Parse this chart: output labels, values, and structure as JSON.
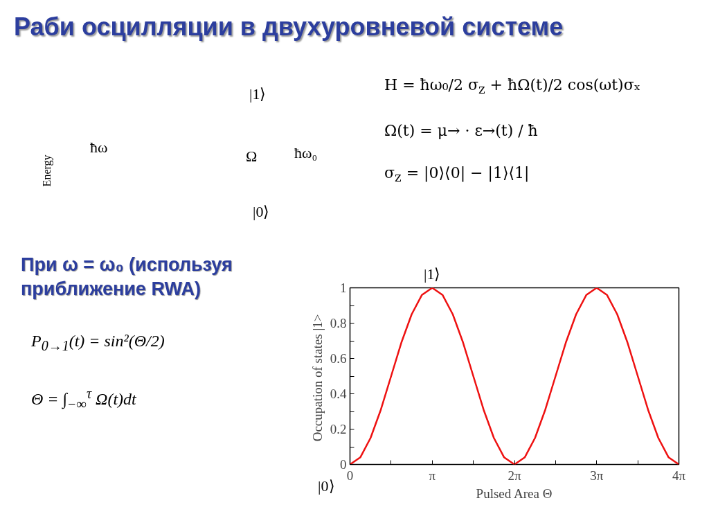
{
  "chart_data": {
    "type": "line",
    "title": "Раби осцилляции в двухуровневой системе",
    "xlabel": "Pulsed Area Θ",
    "ylabel": "Occupation  of states |1>",
    "annotations": [
      "Energy",
      "ħω",
      "|1⟩",
      "Ω",
      "ħω₀",
      "|0⟩",
      "H = ħω₀/2 σ$_{z}$ + ħΩ(t)/2 cos(ωt)σₓ",
      "Ω(t) = μ→ · ε→(t) / ħ",
      "σ$_{z}$ = |0⟩⟨0| − |1⟩⟨1|",
      "При ω = ω₀ (используя приближение RWA)",
      "P$_{0→1}$(t) = sin²(Θ/2)",
      "Θ = ∫$_{−∞}$$^{τ}$ Ω(t)dt",
      {
        "text": "|1⟩",
        "x": 3.142,
        "y": 1
      },
      {
        "text": "|0⟩",
        "x": 0,
        "y": 0
      }
    ],
    "x": [
      0,
      0.393,
      0.785,
      1.178,
      1.571,
      1.963,
      2.356,
      2.749,
      3.142,
      3.534,
      3.927,
      4.32,
      4.712,
      5.105,
      5.498,
      5.89,
      6.283,
      6.676,
      7.069,
      7.461,
      7.854,
      8.247,
      8.639,
      9.032,
      9.425,
      9.817,
      10.21,
      10.603,
      10.996,
      11.388,
      11.781,
      12.174,
      12.566
    ],
    "values": [
      0,
      0.04,
      0.15,
      0.31,
      0.5,
      0.69,
      0.85,
      0.96,
      1,
      0.96,
      0.85,
      0.69,
      0.5,
      0.31,
      0.15,
      0.04,
      0,
      0.04,
      0.15,
      0.31,
      0.5,
      0.69,
      0.85,
      0.96,
      1,
      0.96,
      0.85,
      0.69,
      0.5,
      0.31,
      0.15,
      0.04,
      0
    ],
    "color": "#ee1111",
    "xlim": [
      0,
      12.566
    ],
    "ylim": [
      0,
      1
    ],
    "xticks": [
      0,
      {
        "value": 1.571,
        "label": null
      },
      {
        "value": 3.142,
        "label": "π"
      },
      {
        "value": 4.712,
        "label": null
      },
      {
        "value": 6.283,
        "label": "2π"
      },
      {
        "value": 7.854,
        "label": null
      },
      {
        "value": 9.425,
        "label": "3π"
      },
      {
        "value": 10.996,
        "label": null
      },
      {
        "value": 12.566,
        "label": "4π"
      }
    ],
    "yticks": [
      0,
      {
        "value": 0.1,
        "label": null
      },
      0.2,
      {
        "value": 0.3,
        "label": null
      },
      0.4,
      {
        "value": 0.5,
        "label": null
      },
      0.6,
      {
        "value": 0.7,
        "label": null
      },
      0.8,
      {
        "value": 0.9,
        "label": null
      },
      1
    ],
    "grid": false
  }
}
